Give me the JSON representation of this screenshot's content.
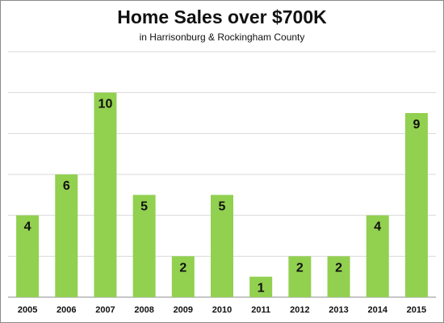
{
  "chart_data": {
    "type": "bar",
    "title": "Home Sales over $700K",
    "subtitle": "in Harrisonburg & Rockingham County",
    "categories": [
      "2005",
      "2006",
      "2007",
      "2008",
      "2009",
      "2010",
      "2011",
      "2012",
      "2013",
      "2014",
      "2015"
    ],
    "values": [
      4,
      6,
      10,
      5,
      2,
      5,
      1,
      2,
      2,
      4,
      9
    ],
    "xlabel": "",
    "ylabel": "",
    "ylim": [
      0,
      12
    ],
    "y_tick_labels_shown": false,
    "grid": true,
    "legend": "none",
    "data_labels": true,
    "colors": {
      "bar": "#92d050",
      "grid": "#d9d9d9",
      "axis": "#8c8c8c"
    }
  }
}
